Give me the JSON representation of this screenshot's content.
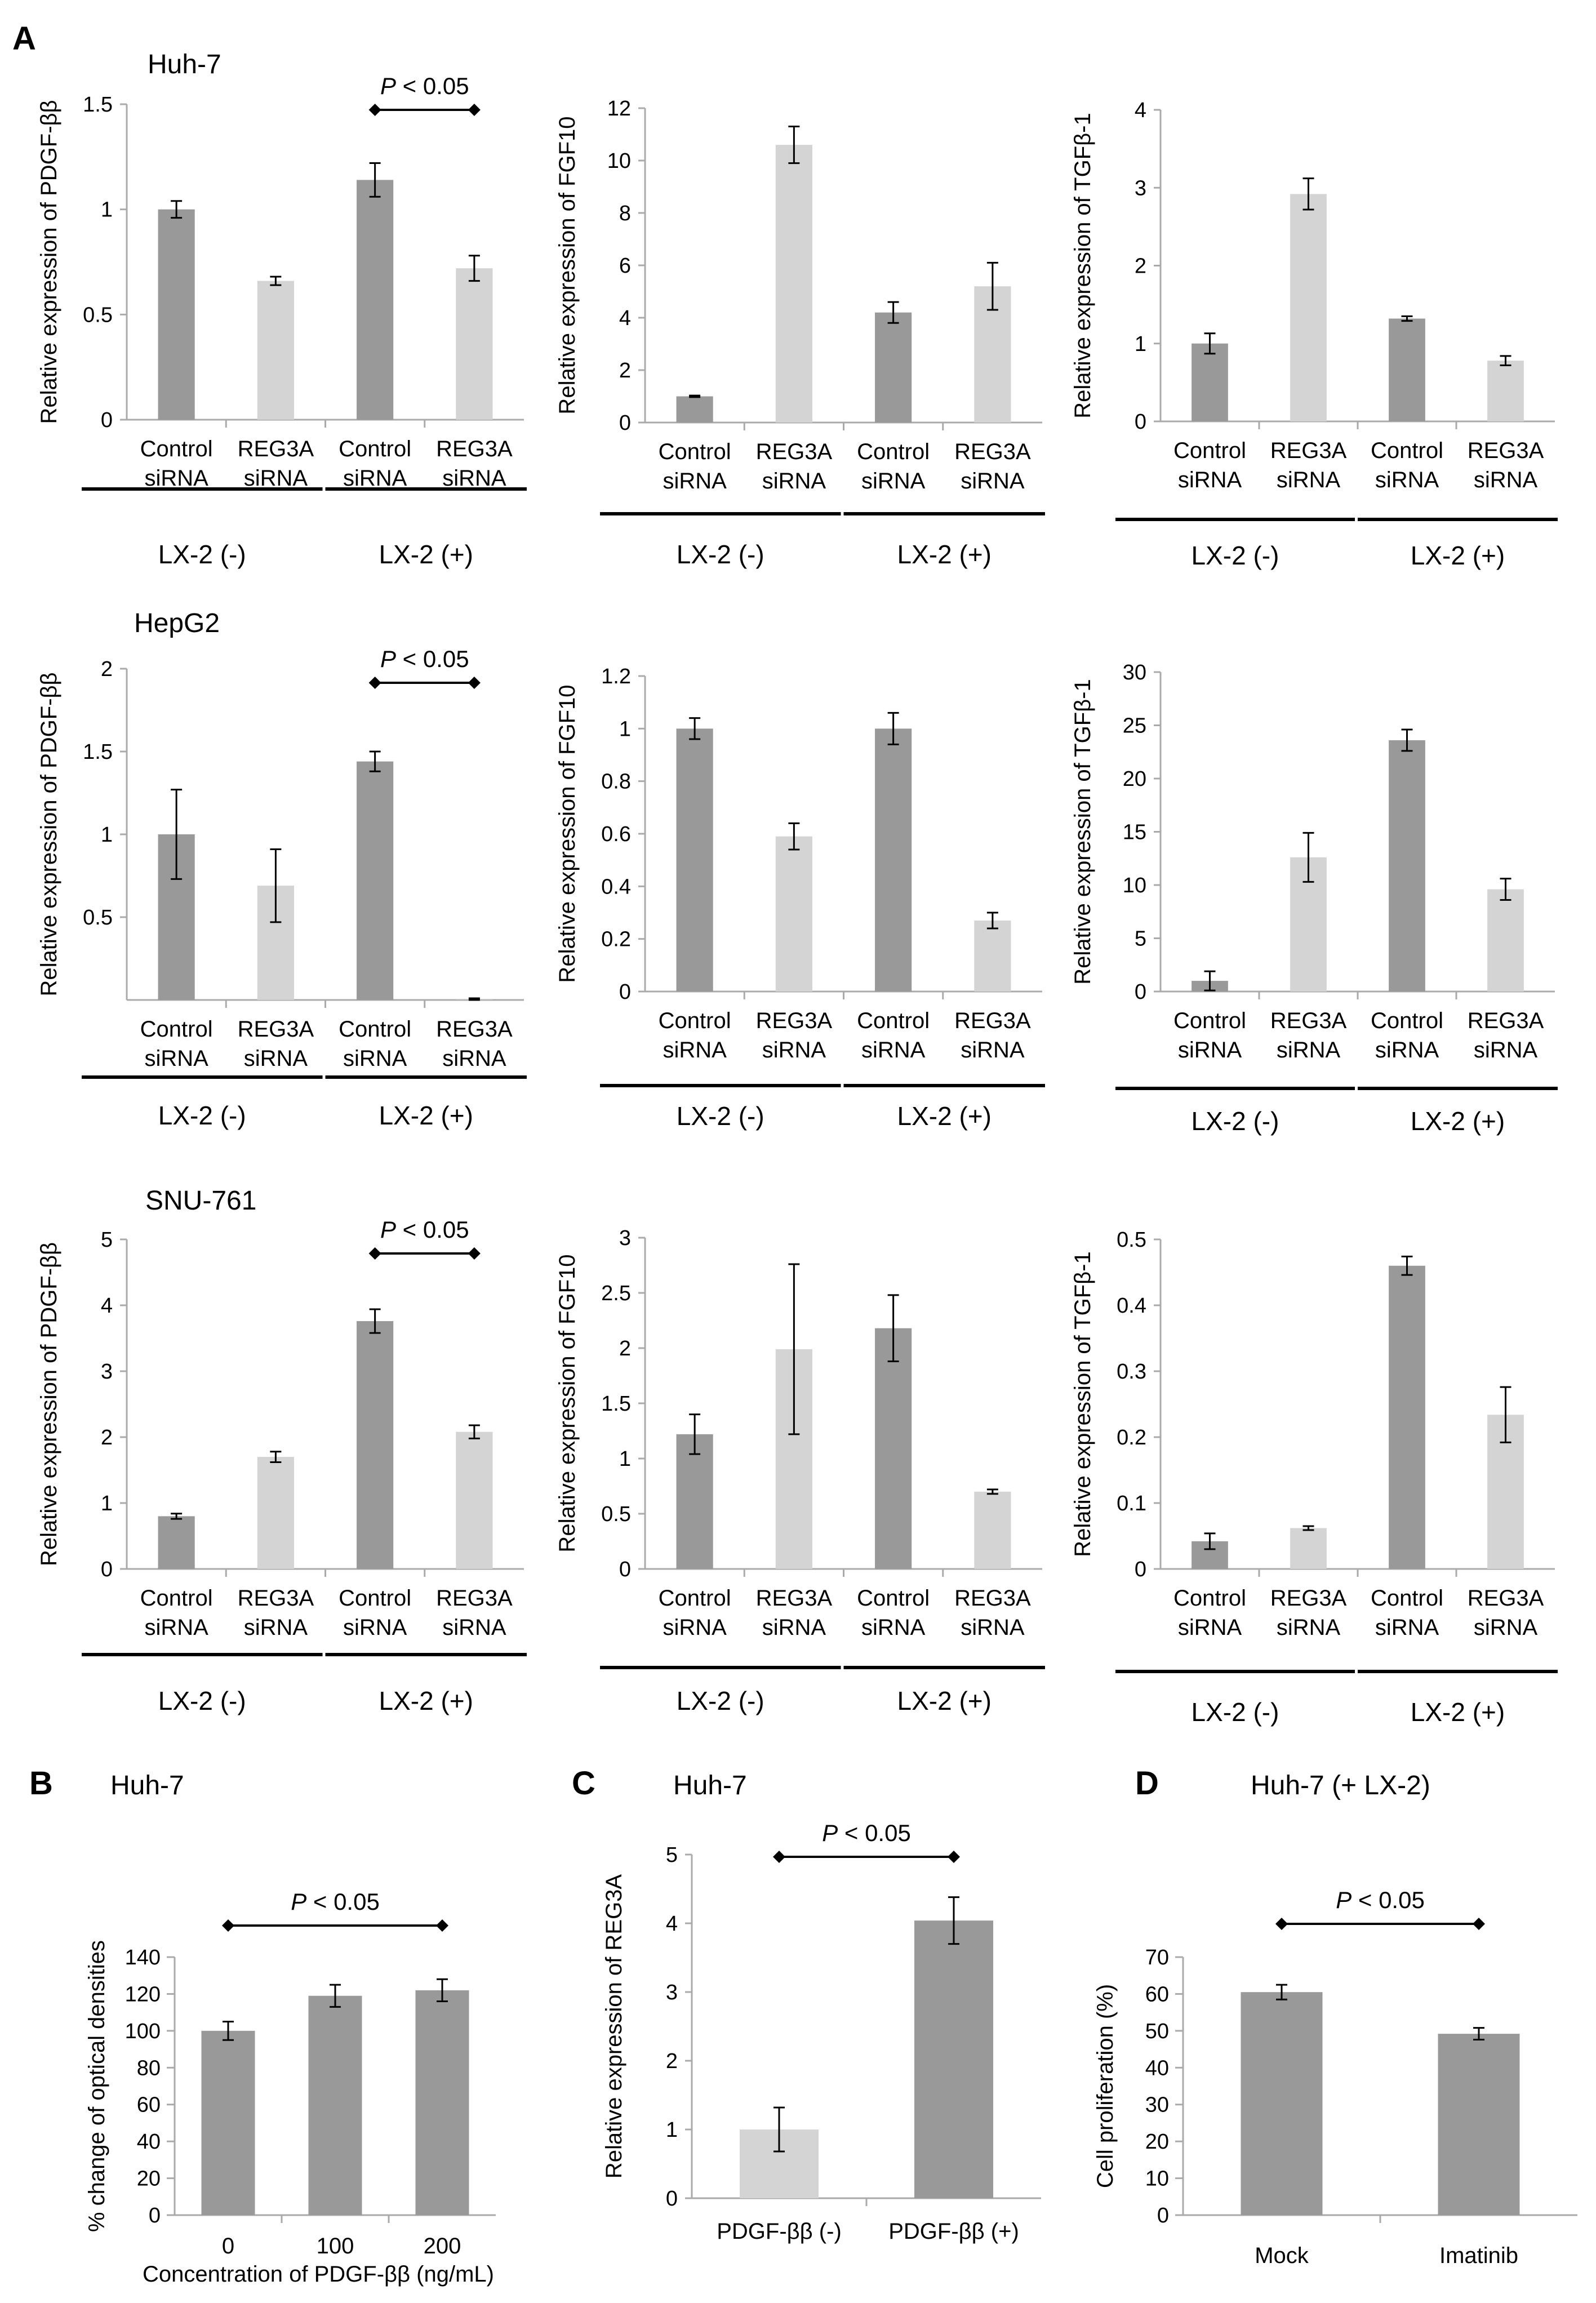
{
  "figure": {
    "labels": {
      "A": "A",
      "B": "B",
      "C": "C",
      "D": "D"
    },
    "colors": {
      "dark": "#999999",
      "light": "#d4d4d4",
      "axis": "#aaaaaa",
      "ink": "#000000"
    }
  },
  "chart_data": [
    {
      "id": "A1",
      "type": "bar",
      "cell_line": "Huh-7",
      "ylabel": "Relative expression of PDGF-ββ",
      "ylim": [
        0,
        1.5
      ],
      "ticks": [
        "0",
        "0.5",
        "1",
        "1.5"
      ],
      "categories": [
        [
          "Control",
          "siRNA"
        ],
        [
          "REG3A",
          "siRNA"
        ],
        [
          "Control",
          "siRNA"
        ],
        [
          "REG3A",
          "siRNA"
        ]
      ],
      "values": [
        1.0,
        0.66,
        1.14,
        0.72
      ],
      "errors": [
        0.04,
        0.02,
        0.08,
        0.06
      ],
      "shades": [
        "dark",
        "light",
        "dark",
        "light"
      ],
      "groups": [
        "LX-2 (-)",
        "LX-2 (+)"
      ],
      "pvalue": {
        "text": "P < 0.05",
        "from": 2,
        "to": 3
      }
    },
    {
      "id": "A2",
      "type": "bar",
      "ylabel": "Relative expression of FGF10",
      "ylim": [
        0,
        12
      ],
      "ticks": [
        "0",
        "2",
        "4",
        "6",
        "8",
        "10",
        "12"
      ],
      "categories": [
        [
          "Control",
          "siRNA"
        ],
        [
          "REG3A",
          "siRNA"
        ],
        [
          "Control",
          "siRNA"
        ],
        [
          "REG3A",
          "siRNA"
        ]
      ],
      "values": [
        1.0,
        10.6,
        4.2,
        5.2
      ],
      "errors": [
        0.03,
        0.7,
        0.4,
        0.9
      ],
      "shades": [
        "dark",
        "light",
        "dark",
        "light"
      ],
      "groups": [
        "LX-2 (-)",
        "LX-2 (+)"
      ]
    },
    {
      "id": "A3",
      "type": "bar",
      "ylabel": "Relative expression of TGFβ-1",
      "ylim": [
        0,
        4
      ],
      "ticks": [
        "0",
        "1",
        "2",
        "3",
        "4"
      ],
      "categories": [
        [
          "Control",
          "siRNA"
        ],
        [
          "REG3A",
          "siRNA"
        ],
        [
          "Control",
          "siRNA"
        ],
        [
          "REG3A",
          "siRNA"
        ]
      ],
      "values": [
        1.0,
        2.92,
        1.32,
        0.78
      ],
      "errors": [
        0.13,
        0.2,
        0.03,
        0.06
      ],
      "shades": [
        "dark",
        "light",
        "dark",
        "light"
      ],
      "groups": [
        "LX-2 (-)",
        "LX-2 (+)"
      ]
    },
    {
      "id": "A4",
      "type": "bar",
      "cell_line": "HepG2",
      "ylabel": "Relative expression of PDGF-ββ",
      "ylim": [
        0,
        2
      ],
      "ticks": [
        "0.5",
        "1",
        "1.5",
        "2"
      ],
      "categories": [
        [
          "Control",
          "siRNA"
        ],
        [
          "REG3A",
          "siRNA"
        ],
        [
          "Control",
          "siRNA"
        ],
        [
          "REG3A",
          "siRNA"
        ]
      ],
      "values": [
        1.0,
        0.69,
        1.44,
        0.0
      ],
      "errors": [
        0.27,
        0.22,
        0.06,
        0.01
      ],
      "shades": [
        "dark",
        "light",
        "dark",
        "light"
      ],
      "groups": [
        "LX-2 (-)",
        "LX-2 (+)"
      ],
      "pvalue": {
        "text": "P < 0.05",
        "from": 2,
        "to": 3
      }
    },
    {
      "id": "A5",
      "type": "bar",
      "ylabel": "Relative expression of FGF10",
      "ylim": [
        0,
        1.2
      ],
      "ticks": [
        "0",
        "0.2",
        "0.4",
        "0.6",
        "0.8",
        "1",
        "1.2"
      ],
      "categories": [
        [
          "Control",
          "siRNA"
        ],
        [
          "REG3A",
          "siRNA"
        ],
        [
          "Control",
          "siRNA"
        ],
        [
          "REG3A",
          "siRNA"
        ]
      ],
      "values": [
        1.0,
        0.59,
        1.0,
        0.27
      ],
      "errors": [
        0.04,
        0.05,
        0.06,
        0.03
      ],
      "shades": [
        "dark",
        "light",
        "dark",
        "light"
      ],
      "groups": [
        "LX-2 (-)",
        "LX-2 (+)"
      ]
    },
    {
      "id": "A6",
      "type": "bar",
      "ylabel": "Relative expression of TGFβ-1",
      "ylim": [
        0,
        30
      ],
      "ticks": [
        "0",
        "5",
        "10",
        "15",
        "20",
        "25",
        "30"
      ],
      "categories": [
        [
          "Control",
          "siRNA"
        ],
        [
          "REG3A",
          "siRNA"
        ],
        [
          "Control",
          "siRNA"
        ],
        [
          "REG3A",
          "siRNA"
        ]
      ],
      "values": [
        1.0,
        12.6,
        23.6,
        9.6
      ],
      "errors": [
        0.9,
        2.3,
        1.0,
        1.0
      ],
      "shades": [
        "dark",
        "light",
        "dark",
        "light"
      ],
      "groups": [
        "LX-2 (-)",
        "LX-2 (+)"
      ]
    },
    {
      "id": "A7",
      "type": "bar",
      "cell_line": "SNU-761",
      "ylabel": "Relative expression of PDGF-ββ",
      "ylim": [
        0,
        5
      ],
      "ticks": [
        "0",
        "1",
        "2",
        "3",
        "4",
        "5"
      ],
      "categories": [
        [
          "Control",
          "siRNA"
        ],
        [
          "REG3A",
          "siRNA"
        ],
        [
          "Control",
          "siRNA"
        ],
        [
          "REG3A",
          "siRNA"
        ]
      ],
      "values": [
        0.8,
        1.7,
        3.76,
        2.08
      ],
      "errors": [
        0.04,
        0.08,
        0.18,
        0.1
      ],
      "shades": [
        "dark",
        "light",
        "dark",
        "light"
      ],
      "groups": [
        "LX-2 (-)",
        "LX-2 (+)"
      ],
      "pvalue": {
        "text": "P < 0.05",
        "from": 2,
        "to": 3
      }
    },
    {
      "id": "A8",
      "type": "bar",
      "ylabel": "Relative expression of FGF10",
      "ylim": [
        0,
        3
      ],
      "ticks": [
        "0",
        "0.5",
        "1",
        "1.5",
        "2",
        "2.5",
        "3"
      ],
      "categories": [
        [
          "Control",
          "siRNA"
        ],
        [
          "REG3A",
          "siRNA"
        ],
        [
          "Control",
          "siRNA"
        ],
        [
          "REG3A",
          "siRNA"
        ]
      ],
      "values": [
        1.22,
        1.99,
        2.18,
        0.7
      ],
      "errors": [
        0.18,
        0.77,
        0.3,
        0.02
      ],
      "shades": [
        "dark",
        "light",
        "dark",
        "light"
      ],
      "groups": [
        "LX-2 (-)",
        "LX-2 (+)"
      ]
    },
    {
      "id": "A9",
      "type": "bar",
      "ylabel": "Relative expression of TGFβ-1",
      "ylim": [
        0,
        0.5
      ],
      "ticks": [
        "0",
        "0.1",
        "0.2",
        "0.3",
        "0.4",
        "0.5"
      ],
      "categories": [
        [
          "Control",
          "siRNA"
        ],
        [
          "REG3A",
          "siRNA"
        ],
        [
          "Control",
          "siRNA"
        ],
        [
          "REG3A",
          "siRNA"
        ]
      ],
      "values": [
        0.042,
        0.062,
        0.46,
        0.234
      ],
      "errors": [
        0.012,
        0.003,
        0.014,
        0.042
      ],
      "shades": [
        "dark",
        "light",
        "dark",
        "light"
      ],
      "groups": [
        "LX-2 (-)",
        "LX-2 (+)"
      ]
    },
    {
      "id": "B",
      "type": "bar",
      "cell_line": "Huh-7",
      "ylabel": "% change of optical densities",
      "xlabel": "Concentration of PDGF-ββ (ng/mL)",
      "ylim": [
        0,
        140
      ],
      "ticks": [
        "0",
        "20",
        "40",
        "60",
        "80",
        "100",
        "120",
        "140"
      ],
      "categories": [
        [
          "0"
        ],
        [
          "100"
        ],
        [
          "200"
        ]
      ],
      "values": [
        100,
        119,
        122
      ],
      "errors": [
        5,
        6,
        6
      ],
      "shades": [
        "dark",
        "dark",
        "dark"
      ],
      "pvalue": {
        "text": "P < 0.05",
        "from": 0,
        "to": 2
      }
    },
    {
      "id": "C",
      "type": "bar",
      "cell_line": "Huh-7",
      "ylabel": "Relative expression of REG3A",
      "ylim": [
        0,
        5
      ],
      "ticks": [
        "0",
        "1",
        "2",
        "3",
        "4",
        "5"
      ],
      "categories": [
        [
          "PDGF-ββ (-)"
        ],
        [
          "PDGF-ββ (+)"
        ]
      ],
      "values": [
        1.0,
        4.04
      ],
      "errors": [
        0.32,
        0.34
      ],
      "shades": [
        "light",
        "dark"
      ],
      "pvalue": {
        "text": "P < 0.05",
        "from": 0,
        "to": 1
      }
    },
    {
      "id": "D",
      "type": "bar",
      "cell_line": "Huh-7 (+ LX-2)",
      "ylabel": "Cell proliferation (%)",
      "ylim": [
        0,
        70
      ],
      "ticks": [
        "0",
        "10",
        "20",
        "30",
        "40",
        "50",
        "60",
        "70"
      ],
      "categories": [
        [
          "Mock"
        ],
        [
          "Imatinib"
        ]
      ],
      "values": [
        60.5,
        49.2
      ],
      "errors": [
        2,
        1.6
      ],
      "shades": [
        "dark",
        "dark"
      ],
      "pvalue": {
        "text": "P < 0.05",
        "from": 0,
        "to": 1
      }
    }
  ]
}
